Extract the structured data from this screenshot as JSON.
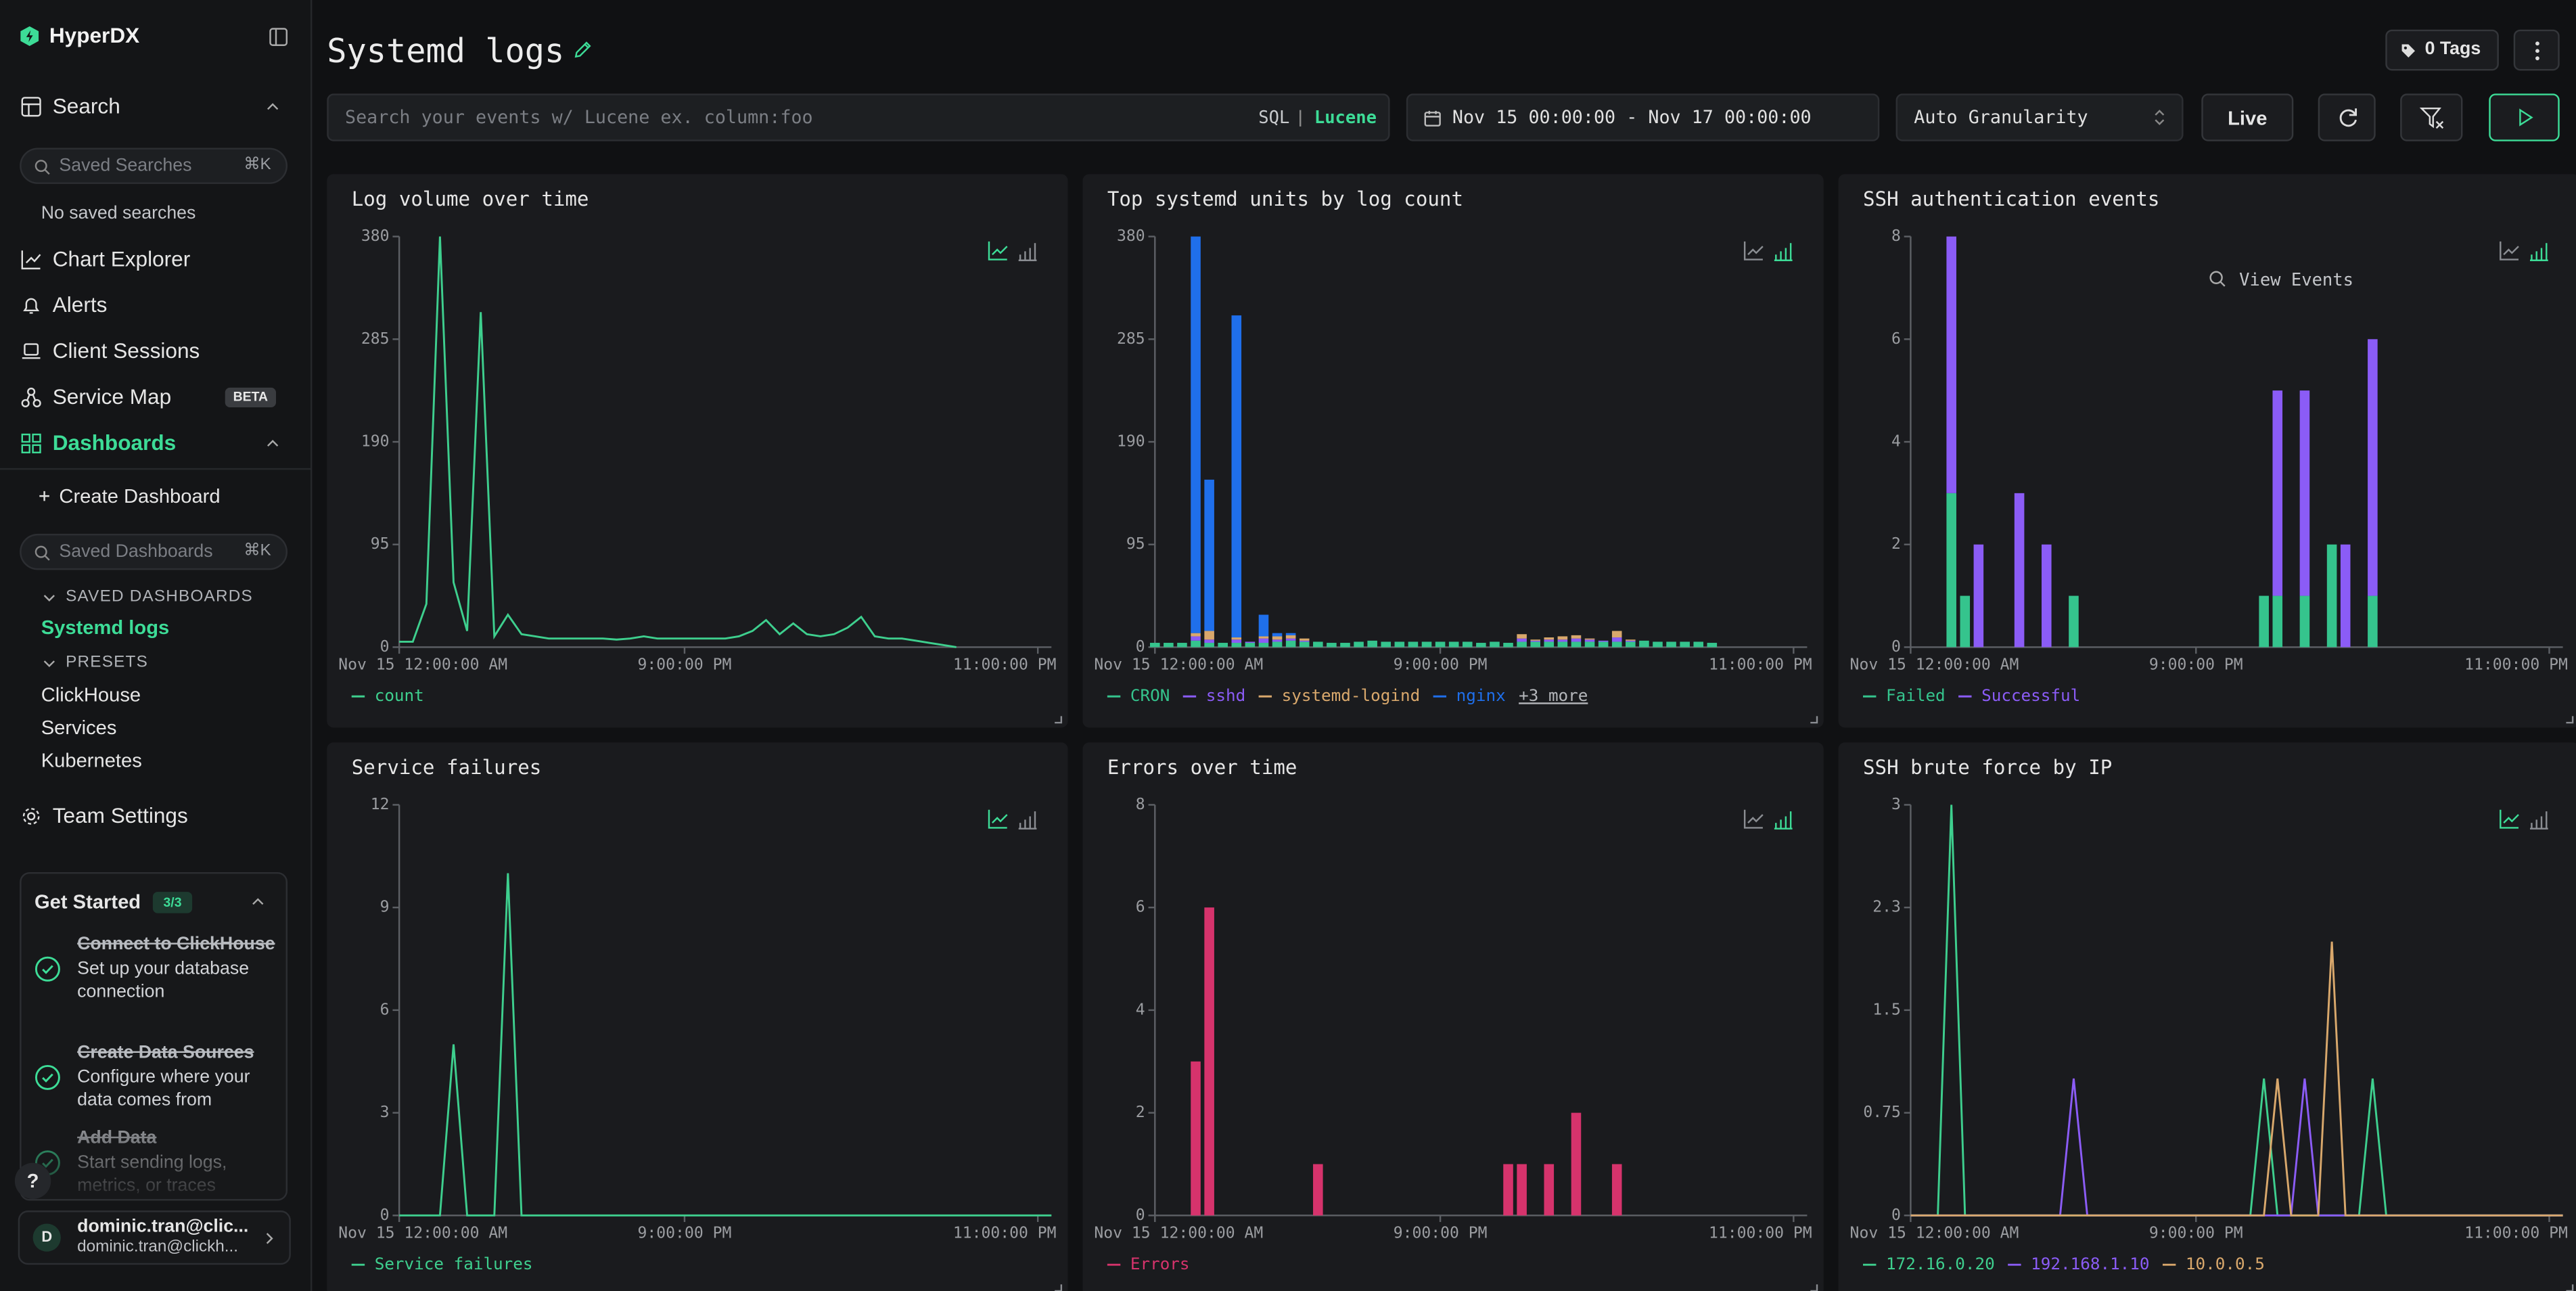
{
  "sidebar": {
    "brand": "HyperDX",
    "nav": {
      "search": "Search",
      "saved_searches_placeholder": "Saved Searches",
      "saved_searches_shortcut": "⌘K",
      "no_saved_searches": "No saved searches",
      "chart_explorer": "Chart Explorer",
      "alerts": "Alerts",
      "client_sessions": "Client Sessions",
      "service_map": "Service Map",
      "service_map_badge": "BETA",
      "dashboards": "Dashboards"
    },
    "dashboards": {
      "create": "Create Dashboard",
      "search_placeholder": "Saved Dashboards",
      "shortcut": "⌘K",
      "saved_heading": "SAVED DASHBOARDS",
      "saved": [
        "Systemd logs"
      ],
      "presets_heading": "PRESETS",
      "presets": [
        "ClickHouse",
        "Services",
        "Kubernetes"
      ]
    },
    "team_settings": "Team Settings",
    "get_started": {
      "title": "Get Started",
      "progress": "3/3",
      "steps": [
        {
          "title": "Connect to ClickHouse",
          "description": "Set up your database connection"
        },
        {
          "title": "Create Data Sources",
          "description": "Configure where your data comes from"
        },
        {
          "title": "Add Data",
          "description": "Start sending logs, metrics, or traces"
        }
      ]
    },
    "help": "?",
    "user": {
      "avatar": "D",
      "name": "dominic.tran@clic...",
      "email": "dominic.tran@clickh..."
    }
  },
  "header": {
    "title": "Systemd logs",
    "tags": "0 Tags",
    "search_placeholder": "Search your events w/ Lucene ex. column:foo",
    "query_languages": [
      "SQL",
      "Lucene"
    ],
    "time_range": "Nov 15 00:00:00 - Nov 17 00:00:00",
    "granularity": "Auto Granularity",
    "live": "Live"
  },
  "chart_data": [
    {
      "type": "line",
      "title": "Log volume over time",
      "x": [
        0,
        1,
        2,
        3,
        4,
        5,
        6,
        7,
        8,
        9,
        10,
        11,
        12,
        13,
        14,
        15,
        16,
        17,
        18,
        19,
        20,
        21,
        22,
        23,
        24,
        25,
        26,
        27,
        28,
        29,
        30,
        31,
        32,
        33,
        34,
        35,
        36,
        37,
        38,
        39,
        40,
        41
      ],
      "xlim": [
        0,
        48
      ],
      "xticks": [
        {
          "value": 0,
          "label": "Nov 15 12:00:00 AM"
        },
        {
          "value": 21,
          "label": "9:00:00 PM"
        },
        {
          "value": 47,
          "label": "11:00:00 PM"
        }
      ],
      "ylim": [
        0,
        380
      ],
      "yticks": [
        0,
        95,
        190,
        285,
        380
      ],
      "series": [
        {
          "name": "count",
          "color": "#3ecf8e",
          "values": [
            5,
            5,
            40,
            380,
            60,
            15,
            310,
            10,
            30,
            12,
            10,
            8,
            8,
            8,
            8,
            8,
            7,
            8,
            10,
            8,
            8,
            8,
            8,
            8,
            8,
            10,
            15,
            25,
            12,
            22,
            12,
            10,
            12,
            18,
            28,
            10,
            8,
            8,
            6,
            4,
            2,
            0
          ]
        }
      ]
    },
    {
      "type": "bar",
      "stacked": true,
      "title": "Top systemd units by log count",
      "x": [
        0,
        1,
        2,
        3,
        4,
        5,
        6,
        7,
        8,
        9,
        10,
        11,
        12,
        13,
        14,
        15,
        16,
        17,
        18,
        19,
        20,
        21,
        22,
        23,
        24,
        25,
        26,
        27,
        28,
        29,
        30,
        31,
        32,
        33,
        34,
        35,
        36,
        37,
        38,
        39,
        40,
        41
      ],
      "xlim": [
        0,
        48
      ],
      "xticks": [
        {
          "value": 0,
          "label": "Nov 15 12:00:00 AM"
        },
        {
          "value": 21,
          "label": "9:00:00 PM"
        },
        {
          "value": 47,
          "label": "11:00:00 PM"
        }
      ],
      "ylim": [
        0,
        380
      ],
      "yticks": [
        0,
        95,
        190,
        285,
        380
      ],
      "series": [
        {
          "name": "CRON",
          "color": "#35c48d",
          "values": [
            4,
            4,
            4,
            6,
            4,
            4,
            4,
            4,
            4,
            5,
            6,
            5,
            5,
            4,
            4,
            5,
            6,
            5,
            5,
            5,
            5,
            5,
            5,
            5,
            4,
            5,
            4,
            5,
            5,
            5,
            5,
            5,
            5,
            5,
            5,
            5,
            6,
            5,
            5,
            5,
            5,
            4
          ]
        },
        {
          "name": "sshd",
          "color": "#8b5cf6",
          "values": [
            0,
            0,
            0,
            4,
            3,
            0,
            3,
            1,
            4,
            2,
            2,
            1,
            0,
            0,
            0,
            0,
            0,
            0,
            0,
            0,
            0,
            0,
            0,
            0,
            0,
            0,
            0,
            3,
            1,
            2,
            2,
            3,
            2,
            1,
            4,
            1,
            0,
            0,
            0,
            0,
            0,
            0
          ]
        },
        {
          "name": "systemd-logind",
          "color": "#d9a86c",
          "values": [
            0,
            0,
            0,
            3,
            8,
            0,
            2,
            0,
            2,
            3,
            3,
            2,
            0,
            0,
            0,
            0,
            0,
            0,
            0,
            0,
            0,
            0,
            0,
            0,
            0,
            0,
            0,
            4,
            1,
            2,
            3,
            3,
            1,
            0,
            6,
            1,
            0,
            0,
            0,
            0,
            0,
            0
          ]
        },
        {
          "name": "nginx",
          "color": "#1f6feb",
          "values": [
            0,
            0,
            0,
            367,
            140,
            0,
            298,
            0,
            20,
            3,
            2,
            0,
            0,
            0,
            0,
            0,
            0,
            0,
            0,
            0,
            0,
            0,
            0,
            0,
            0,
            0,
            0,
            0,
            0,
            0,
            0,
            0,
            0,
            0,
            0,
            0,
            0,
            0,
            0,
            0,
            0,
            0
          ]
        }
      ],
      "legend_more": "+3 more"
    },
    {
      "type": "bar",
      "stacked": true,
      "title": "SSH authentication events",
      "annotation": "View Events",
      "x": [
        3,
        4,
        5,
        8,
        10,
        12,
        26,
        27,
        29,
        31,
        32,
        34
      ],
      "xlim": [
        0,
        48
      ],
      "xticks": [
        {
          "value": 0,
          "label": "Nov 15 12:00:00 AM"
        },
        {
          "value": 21,
          "label": "9:00:00 PM"
        },
        {
          "value": 47,
          "label": "11:00:00 PM"
        }
      ],
      "ylim": [
        0,
        8
      ],
      "yticks": [
        0,
        2,
        4,
        6,
        8
      ],
      "series": [
        {
          "name": "Failed",
          "color": "#35c48d",
          "values": [
            3,
            1,
            0,
            0,
            0,
            1,
            1,
            1,
            1,
            2,
            0,
            1
          ]
        },
        {
          "name": "Successful",
          "color": "#8b5cf6",
          "values": [
            5,
            0,
            2,
            3,
            2,
            0,
            0,
            4,
            4,
            0,
            2,
            5
          ]
        }
      ]
    },
    {
      "type": "line",
      "title": "Service failures",
      "x": [
        0,
        3,
        4,
        5,
        7,
        8,
        9,
        48
      ],
      "xlim": [
        0,
        48
      ],
      "xticks": [
        {
          "value": 0,
          "label": "Nov 15 12:00:00 AM"
        },
        {
          "value": 21,
          "label": "9:00:00 PM"
        },
        {
          "value": 47,
          "label": "11:00:00 PM"
        }
      ],
      "ylim": [
        0,
        12
      ],
      "yticks": [
        0,
        3,
        6,
        9,
        12
      ],
      "series": [
        {
          "name": "Service failures",
          "color": "#3ecf8e",
          "values": [
            0,
            0,
            5,
            0,
            0,
            10,
            0,
            0
          ]
        }
      ]
    },
    {
      "type": "bar",
      "title": "Errors over time",
      "x": [
        3,
        4,
        12,
        26,
        27,
        29,
        31,
        34
      ],
      "xlim": [
        0,
        48
      ],
      "xticks": [
        {
          "value": 0,
          "label": "Nov 15 12:00:00 AM"
        },
        {
          "value": 21,
          "label": "9:00:00 PM"
        },
        {
          "value": 47,
          "label": "11:00:00 PM"
        }
      ],
      "ylim": [
        0,
        8
      ],
      "yticks": [
        0,
        2,
        4,
        6,
        8
      ],
      "series": [
        {
          "name": "Errors",
          "color": "#d6336c",
          "values": [
            3,
            6,
            1,
            1,
            1,
            1,
            2,
            1
          ]
        }
      ]
    },
    {
      "type": "line",
      "title": "SSH brute force by IP",
      "xlim": [
        0,
        48
      ],
      "xticks": [
        {
          "value": 0,
          "label": "Nov 15 12:00:00 AM"
        },
        {
          "value": 21,
          "label": "9:00:00 PM"
        },
        {
          "value": 47,
          "label": "11:00:00 PM"
        }
      ],
      "ylim": [
        0,
        3
      ],
      "yticks": [
        0,
        0.75,
        1.5,
        {
          "value": 2.25,
          "label": "2.3"
        },
        3
      ],
      "series": [
        {
          "name": "172.16.0.20",
          "color": "#3ecf8e",
          "x": [
            0,
            2,
            3,
            4,
            25,
            26,
            27,
            33,
            34,
            35,
            48
          ],
          "values": [
            0,
            0,
            3,
            0,
            0,
            1,
            0,
            0,
            1,
            0,
            0
          ]
        },
        {
          "name": "192.168.1.10",
          "color": "#8b5cf6",
          "x": [
            0,
            11,
            12,
            13,
            28,
            29,
            30,
            48
          ],
          "values": [
            0,
            0,
            1,
            0,
            0,
            1,
            0,
            0
          ]
        },
        {
          "name": "10.0.0.5",
          "color": "#d9a86c",
          "x": [
            0,
            26,
            27,
            28,
            30,
            31,
            32,
            48
          ],
          "values": [
            0,
            0,
            1,
            0,
            0,
            2,
            0,
            0
          ]
        }
      ]
    }
  ]
}
